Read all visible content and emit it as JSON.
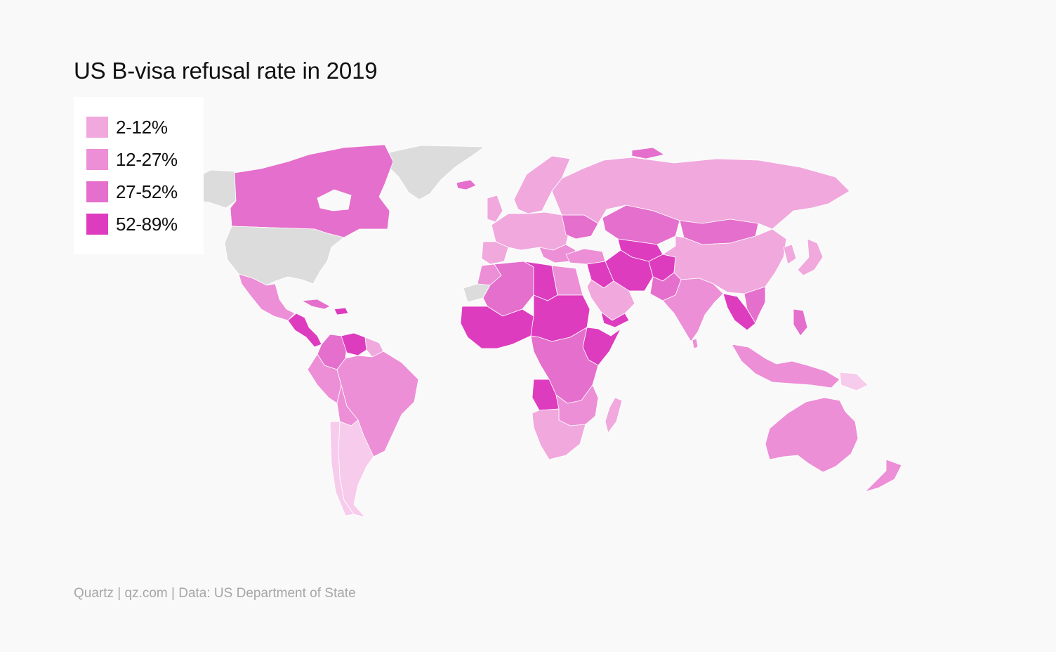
{
  "title": "US B-visa refusal rate in 2019",
  "legend": [
    {
      "label": "2-12%",
      "color": "#f0a8dd"
    },
    {
      "label": "12-27%",
      "color": "#ec8fd6"
    },
    {
      "label": "27-52%",
      "color": "#e56fcc"
    },
    {
      "label": "52-89%",
      "color": "#dd3cbf"
    }
  ],
  "colors": {
    "lowest": "#f7cbec",
    "no_data": "#dcdcdc",
    "background": "#f9f9f9"
  },
  "source": "Quartz | qz.com | Data: US Department of State"
}
